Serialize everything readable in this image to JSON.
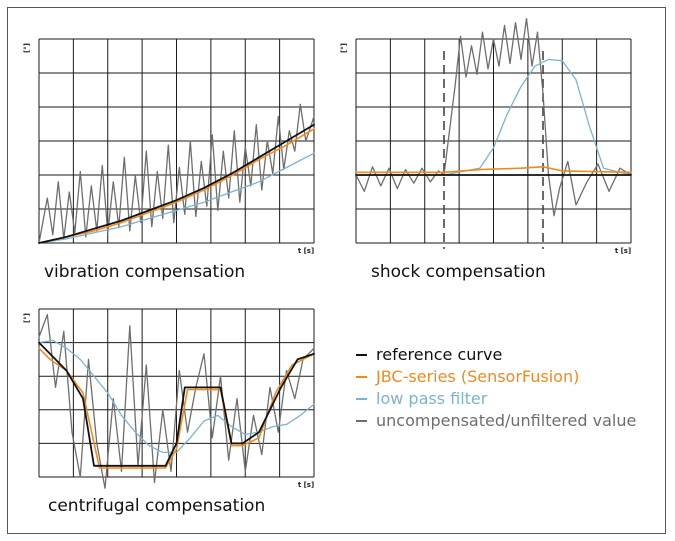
{
  "chart_data": [
    {
      "id": "vibration",
      "type": "line",
      "title": "vibration compensation",
      "ylabel": "[°]",
      "xlabel": "t [s]",
      "grid": true,
      "xlim": [
        0,
        1
      ],
      "ylim": [
        0,
        1
      ],
      "series": [
        {
          "name": "reference curve",
          "key": "reference",
          "x": [
            0,
            0.1,
            0.2,
            0.3,
            0.4,
            0.5,
            0.6,
            0.7,
            0.8,
            0.9,
            1.0
          ],
          "values": [
            0.0,
            0.03,
            0.07,
            0.11,
            0.16,
            0.21,
            0.27,
            0.34,
            0.42,
            0.5,
            0.58
          ]
        },
        {
          "name": "JBC-series (SensorFusion)",
          "key": "jbc",
          "x": [
            0,
            0.1,
            0.2,
            0.3,
            0.4,
            0.5,
            0.6,
            0.7,
            0.8,
            0.9,
            1.0
          ],
          "values": [
            0.0,
            0.03,
            0.06,
            0.1,
            0.15,
            0.2,
            0.26,
            0.33,
            0.41,
            0.48,
            0.56
          ]
        },
        {
          "name": "low pass filter",
          "key": "lowpass",
          "x": [
            0,
            0.1,
            0.2,
            0.3,
            0.4,
            0.5,
            0.6,
            0.7,
            0.8,
            0.9,
            1.0
          ],
          "values": [
            0.0,
            0.02,
            0.05,
            0.08,
            0.12,
            0.16,
            0.2,
            0.25,
            0.3,
            0.37,
            0.44
          ]
        },
        {
          "name": "uncompensated/unfiltered value",
          "key": "raw",
          "x": [
            0,
            0.03,
            0.05,
            0.07,
            0.09,
            0.11,
            0.13,
            0.15,
            0.17,
            0.19,
            0.21,
            0.23,
            0.25,
            0.27,
            0.29,
            0.31,
            0.33,
            0.35,
            0.37,
            0.39,
            0.41,
            0.43,
            0.45,
            0.47,
            0.49,
            0.51,
            0.53,
            0.55,
            0.57,
            0.59,
            0.61,
            0.63,
            0.65,
            0.67,
            0.69,
            0.71,
            0.73,
            0.75,
            0.77,
            0.79,
            0.81,
            0.83,
            0.85,
            0.87,
            0.89,
            0.91,
            0.93,
            0.95,
            0.97,
            1.0
          ],
          "values": [
            0.0,
            0.22,
            0.04,
            0.3,
            0.02,
            0.25,
            0.05,
            0.35,
            0.03,
            0.28,
            0.06,
            0.38,
            0.05,
            0.3,
            0.08,
            0.42,
            0.06,
            0.33,
            0.1,
            0.45,
            0.08,
            0.35,
            0.12,
            0.48,
            0.1,
            0.37,
            0.14,
            0.5,
            0.13,
            0.4,
            0.18,
            0.53,
            0.16,
            0.45,
            0.22,
            0.55,
            0.2,
            0.47,
            0.28,
            0.58,
            0.26,
            0.5,
            0.34,
            0.62,
            0.36,
            0.55,
            0.45,
            0.68,
            0.5,
            0.62
          ]
        }
      ]
    },
    {
      "id": "shock",
      "type": "line",
      "title": "shock compensation",
      "ylabel": "[°]",
      "xlabel": "t [s]",
      "grid": true,
      "xlim": [
        0,
        1
      ],
      "ylim": [
        -0.5,
        1
      ],
      "markers_x": [
        0.32,
        0.68
      ],
      "series": [
        {
          "name": "reference curve",
          "key": "reference",
          "x": [
            0,
            1
          ],
          "values": [
            0.0,
            0.0
          ]
        },
        {
          "name": "JBC-series (SensorFusion)",
          "key": "jbc",
          "x": [
            0,
            0.32,
            0.45,
            0.6,
            0.68,
            0.75,
            1.0
          ],
          "values": [
            0.02,
            0.02,
            0.04,
            0.05,
            0.06,
            0.03,
            0.02
          ]
        },
        {
          "name": "low pass filter",
          "key": "lowpass",
          "x": [
            0,
            0.32,
            0.45,
            0.5,
            0.55,
            0.6,
            0.65,
            0.7,
            0.75,
            0.8,
            0.85,
            0.9,
            1.0
          ],
          "values": [
            0.0,
            0.0,
            0.05,
            0.2,
            0.45,
            0.65,
            0.8,
            0.85,
            0.84,
            0.7,
            0.35,
            0.05,
            0.0
          ]
        },
        {
          "name": "uncompensated/unfiltered value",
          "key": "raw",
          "x": [
            0,
            0.03,
            0.06,
            0.09,
            0.12,
            0.15,
            0.18,
            0.21,
            0.24,
            0.27,
            0.3,
            0.32,
            0.36,
            0.38,
            0.4,
            0.42,
            0.44,
            0.46,
            0.48,
            0.5,
            0.52,
            0.54,
            0.56,
            0.58,
            0.6,
            0.62,
            0.64,
            0.66,
            0.68,
            0.7,
            0.72,
            0.74,
            0.77,
            0.8,
            0.84,
            0.88,
            0.92,
            0.96,
            1.0
          ],
          "values": [
            0.0,
            -0.12,
            0.06,
            -0.08,
            0.05,
            -0.1,
            0.04,
            -0.06,
            0.05,
            -0.05,
            0.03,
            0.0,
            0.65,
            1.02,
            0.72,
            0.95,
            0.74,
            1.05,
            0.78,
            1.0,
            0.8,
            1.1,
            0.82,
            1.12,
            0.85,
            1.15,
            0.8,
            1.05,
            0.6,
            0.0,
            -0.3,
            -0.1,
            0.1,
            -0.22,
            -0.05,
            0.08,
            -0.12,
            0.05,
            0.0
          ]
        }
      ]
    },
    {
      "id": "centrifugal",
      "type": "line",
      "title": "centrifugal compensation",
      "ylabel": "[°]",
      "xlabel": "t [s]",
      "grid": true,
      "xlim": [
        0,
        1
      ],
      "ylim": [
        -0.5,
        1
      ],
      "series": [
        {
          "name": "reference curve",
          "key": "reference",
          "x": [
            0,
            0.04,
            0.1,
            0.16,
            0.2,
            0.46,
            0.5,
            0.53,
            0.66,
            0.7,
            0.74,
            0.8,
            0.88,
            0.94,
            1.0
          ],
          "values": [
            0.7,
            0.6,
            0.45,
            0.2,
            -0.4,
            -0.4,
            -0.2,
            0.3,
            0.3,
            -0.2,
            -0.2,
            -0.1,
            0.3,
            0.55,
            0.6
          ]
        },
        {
          "name": "JBC-series (SensorFusion)",
          "key": "jbc",
          "x": [
            0,
            0.04,
            0.1,
            0.16,
            0.22,
            0.46,
            0.5,
            0.54,
            0.66,
            0.7,
            0.74,
            0.8,
            0.86,
            0.92,
            1.0
          ],
          "values": [
            0.65,
            0.55,
            0.45,
            0.25,
            -0.42,
            -0.42,
            -0.25,
            0.28,
            0.28,
            -0.22,
            -0.22,
            -0.15,
            0.25,
            0.5,
            0.6
          ]
        },
        {
          "name": "low pass filter",
          "key": "lowpass",
          "x": [
            0,
            0.05,
            0.1,
            0.15,
            0.2,
            0.25,
            0.3,
            0.35,
            0.4,
            0.45,
            0.5,
            0.55,
            0.6,
            0.65,
            0.7,
            0.75,
            0.8,
            0.85,
            0.9,
            0.95,
            1.0
          ],
          "values": [
            0.7,
            0.72,
            0.65,
            0.55,
            0.4,
            0.25,
            0.05,
            -0.1,
            -0.22,
            -0.28,
            -0.28,
            -0.15,
            0.0,
            0.05,
            -0.05,
            -0.12,
            -0.1,
            -0.05,
            -0.03,
            0.05,
            0.15
          ]
        },
        {
          "name": "uncompensated/unfiltered value",
          "key": "raw",
          "x": [
            0,
            0.03,
            0.06,
            0.09,
            0.12,
            0.15,
            0.18,
            0.21,
            0.24,
            0.27,
            0.3,
            0.33,
            0.36,
            0.39,
            0.42,
            0.45,
            0.48,
            0.51,
            0.54,
            0.57,
            0.6,
            0.63,
            0.66,
            0.69,
            0.72,
            0.75,
            0.78,
            0.81,
            0.84,
            0.87,
            0.9,
            0.93,
            0.96,
            1.0
          ],
          "values": [
            0.75,
            0.95,
            0.3,
            0.8,
            -0.1,
            -0.5,
            0.55,
            -0.2,
            -0.6,
            0.2,
            -0.45,
            0.85,
            -0.4,
            0.5,
            -0.55,
            0.1,
            -0.45,
            0.45,
            -0.1,
            0.3,
            0.6,
            -0.15,
            0.4,
            -0.35,
            0.2,
            -0.45,
            0.05,
            -0.3,
            0.3,
            -0.1,
            0.45,
            0.2,
            0.55,
            0.65
          ]
        }
      ]
    }
  ],
  "legend": {
    "items": [
      {
        "label": "reference curve",
        "key": "reference"
      },
      {
        "label": "JBC-series (SensorFusion)",
        "key": "jbc"
      },
      {
        "label": "low pass filter",
        "key": "lowpass"
      },
      {
        "label": "uncompensated/unfiltered value",
        "key": "raw"
      }
    ]
  },
  "colors": {
    "reference": "#111111",
    "jbc": "#f08a1c",
    "lowpass": "#7fb2cc",
    "raw": "#6e6e6e",
    "grid": "#1a1a1a",
    "marker": "#444444"
  }
}
